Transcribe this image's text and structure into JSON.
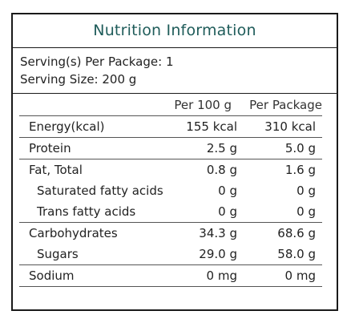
{
  "title": "Nutrition Information",
  "serving": {
    "per_package": "Serving(s) Per Package: 1",
    "size": "Serving Size: 200 g"
  },
  "columns": {
    "per100": "Per 100 g",
    "perpkg": "Per Package"
  },
  "rows": [
    {
      "name": "Energy(kcal)",
      "per100": "155 kcal",
      "perpkg": "310 kcal"
    },
    {
      "name": "Protein",
      "per100": "2.5 g",
      "perpkg": "5.0 g"
    },
    {
      "name": "Fat, Total",
      "per100": "0.8 g",
      "perpkg": "1.6 g"
    },
    {
      "name": "Saturated fatty acids",
      "per100": "0 g",
      "perpkg": "0 g"
    },
    {
      "name": "Trans fatty acids",
      "per100": "0 g",
      "perpkg": "0 g"
    },
    {
      "name": "Carbohydrates",
      "per100": "34.3 g",
      "perpkg": "68.6 g"
    },
    {
      "name": "Sugars",
      "per100": "29.0 g",
      "perpkg": "58.0 g"
    },
    {
      "name": "Sodium",
      "per100": "0 mg",
      "perpkg": "0 mg"
    }
  ]
}
